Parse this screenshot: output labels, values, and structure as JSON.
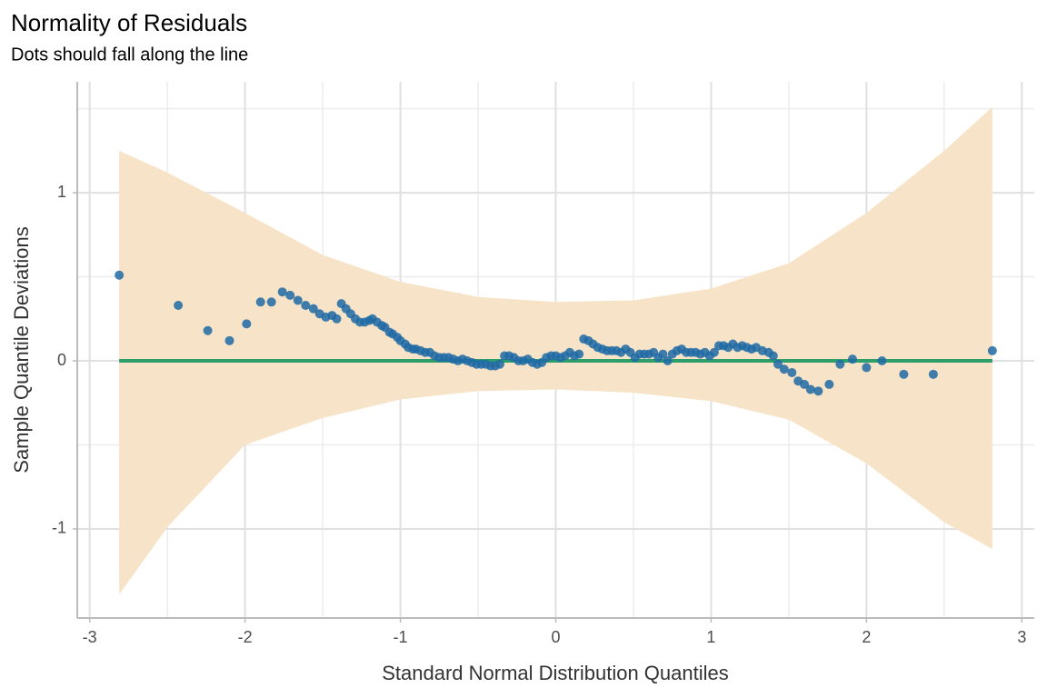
{
  "chart_data": {
    "type": "qq",
    "title": "Normality of Residuals",
    "subtitle": "Dots should fall along the line",
    "x_label": "Standard Normal Distribution Quantiles",
    "y_label": "Sample Quantile Deviations",
    "xlim": [
      -3.08,
      3.08
    ],
    "ylim": [
      -1.53,
      1.66
    ],
    "xticks": [
      -3,
      -2,
      -1,
      0,
      1,
      2,
      3
    ],
    "yticks": [
      -1,
      0,
      1
    ],
    "xminor": [
      -2.5,
      -1.5,
      -0.5,
      0.5,
      1.5,
      2.5
    ],
    "yminor": [
      -0.5,
      0.5,
      1.5
    ],
    "grid": true,
    "band": {
      "color": "#f7e4c8",
      "x": [
        -2.81,
        -2.5,
        -2,
        -1.5,
        -1,
        -0.5,
        0,
        0.5,
        1,
        1.5,
        2,
        2.5,
        2.81
      ],
      "upper": [
        1.25,
        1.12,
        0.88,
        0.63,
        0.47,
        0.38,
        0.35,
        0.36,
        0.43,
        0.58,
        0.88,
        1.25,
        1.51
      ],
      "lower": [
        -1.39,
        -0.99,
        -0.5,
        -0.34,
        -0.23,
        -0.18,
        -0.17,
        -0.19,
        -0.24,
        -0.35,
        -0.61,
        -0.96,
        -1.12
      ]
    },
    "reference": {
      "color": "#2e9e6b",
      "x": [
        -2.81,
        2.81
      ],
      "values": [
        0,
        0
      ]
    },
    "points": {
      "color": "#1f6aa5",
      "x": [
        -2.81,
        -2.43,
        -2.24,
        -2.1,
        -1.99,
        -1.9,
        -1.83,
        -1.76,
        -1.71,
        -1.66,
        -1.61,
        -1.56,
        -1.52,
        -1.48,
        -1.44,
        -1.41,
        -1.38,
        -1.35,
        -1.32,
        -1.29,
        -1.26,
        -1.23,
        -1.2,
        -1.18,
        -1.15,
        -1.12,
        -1.1,
        -1.07,
        -1.05,
        -1.02,
        -1.0,
        -0.97,
        -0.95,
        -0.92,
        -0.9,
        -0.87,
        -0.84,
        -0.81,
        -0.78,
        -0.75,
        -0.72,
        -0.69,
        -0.66,
        -0.63,
        -0.6,
        -0.57,
        -0.54,
        -0.51,
        -0.48,
        -0.45,
        -0.42,
        -0.39,
        -0.36,
        -0.33,
        -0.3,
        -0.27,
        -0.24,
        -0.21,
        -0.18,
        -0.15,
        -0.12,
        -0.09,
        -0.06,
        -0.03,
        0.0,
        0.03,
        0.06,
        0.09,
        0.12,
        0.15,
        0.18,
        0.21,
        0.24,
        0.27,
        0.3,
        0.33,
        0.36,
        0.39,
        0.42,
        0.45,
        0.48,
        0.51,
        0.54,
        0.57,
        0.6,
        0.63,
        0.66,
        0.69,
        0.72,
        0.75,
        0.78,
        0.81,
        0.84,
        0.87,
        0.9,
        0.93,
        0.96,
        0.99,
        1.02,
        1.05,
        1.08,
        1.11,
        1.14,
        1.17,
        1.2,
        1.23,
        1.26,
        1.29,
        1.33,
        1.37,
        1.4,
        1.43,
        1.47,
        1.52,
        1.56,
        1.6,
        1.64,
        1.69,
        1.76,
        1.83,
        1.91,
        2.0,
        2.1,
        2.24,
        2.43,
        2.81
      ],
      "values": [
        0.51,
        0.33,
        0.18,
        0.12,
        0.22,
        0.35,
        0.35,
        0.41,
        0.39,
        0.36,
        0.33,
        0.31,
        0.28,
        0.26,
        0.27,
        0.25,
        0.34,
        0.31,
        0.28,
        0.25,
        0.23,
        0.23,
        0.24,
        0.25,
        0.23,
        0.21,
        0.2,
        0.17,
        0.16,
        0.14,
        0.12,
        0.1,
        0.08,
        0.07,
        0.07,
        0.06,
        0.05,
        0.05,
        0.03,
        0.02,
        0.02,
        0.02,
        0.01,
        0.0,
        0.01,
        0.0,
        -0.01,
        -0.02,
        -0.02,
        -0.02,
        -0.03,
        -0.03,
        -0.02,
        0.03,
        0.03,
        0.02,
        0.0,
        0.0,
        0.01,
        -0.01,
        -0.02,
        -0.01,
        0.02,
        0.03,
        0.03,
        0.02,
        0.03,
        0.05,
        0.03,
        0.04,
        0.13,
        0.12,
        0.1,
        0.08,
        0.07,
        0.06,
        0.06,
        0.06,
        0.05,
        0.07,
        0.05,
        0.02,
        0.04,
        0.04,
        0.04,
        0.05,
        0.02,
        0.04,
        0.0,
        0.04,
        0.06,
        0.07,
        0.05,
        0.05,
        0.05,
        0.04,
        0.05,
        0.03,
        0.05,
        0.09,
        0.09,
        0.08,
        0.1,
        0.08,
        0.09,
        0.08,
        0.07,
        0.08,
        0.06,
        0.05,
        0.03,
        -0.02,
        -0.05,
        -0.07,
        -0.12,
        -0.14,
        -0.17,
        -0.18,
        -0.14,
        -0.02,
        0.01,
        -0.04,
        0.0,
        -0.08,
        -0.08,
        0.06
      ]
    }
  }
}
